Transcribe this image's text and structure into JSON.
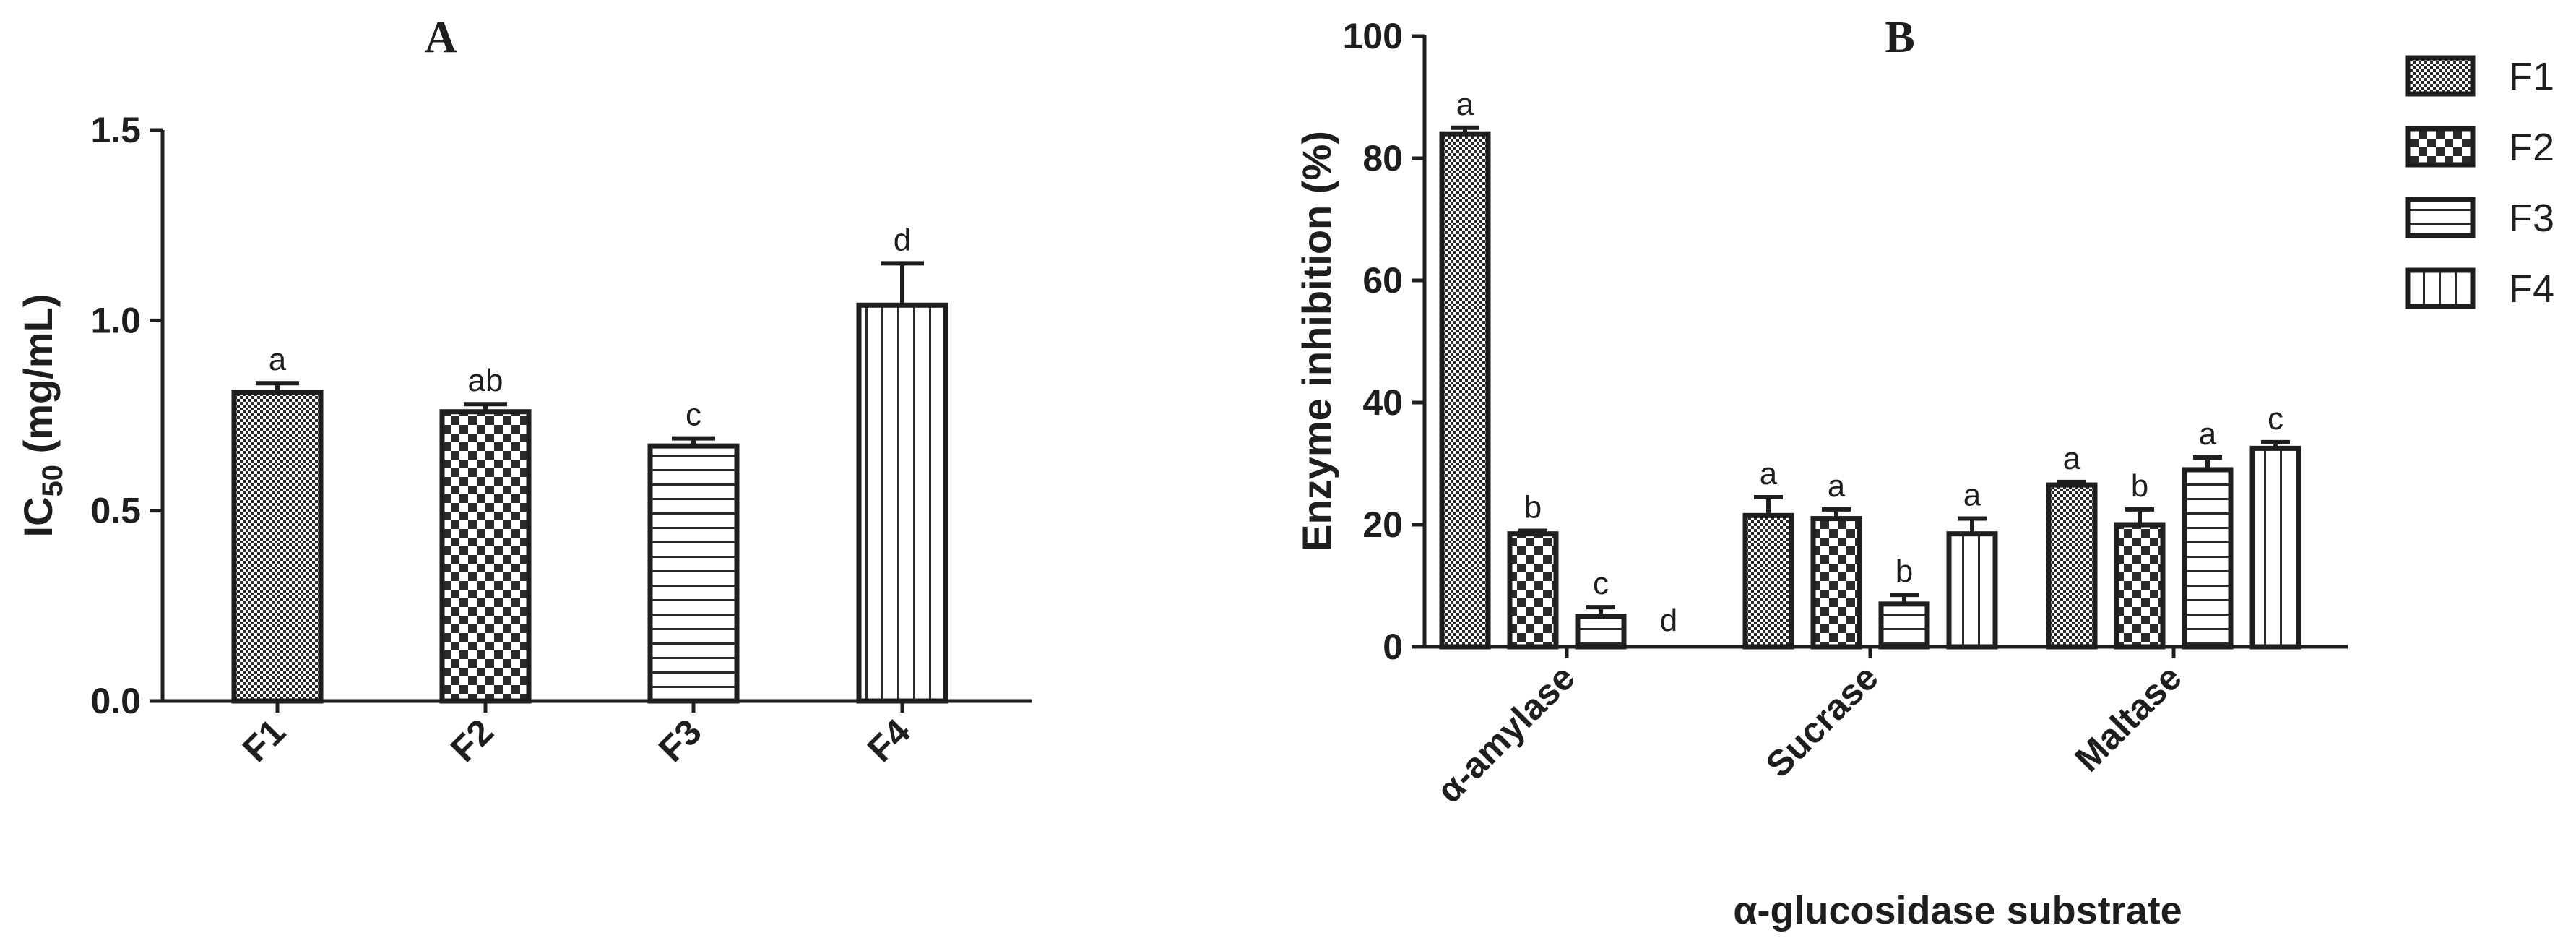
{
  "chart_data": [
    {
      "panel": "A",
      "type": "bar",
      "title": "A",
      "ylabel": "IC",
      "ylabel_sub": "50",
      "ylabel_suffix": " (mg/mL)",
      "xlabel": "",
      "ylim": [
        0,
        1.5
      ],
      "yticks": [
        "0.0",
        "0.5",
        "1.0",
        "1.5"
      ],
      "categories": [
        "F1",
        "F2",
        "F3",
        "F4"
      ],
      "values": [
        0.81,
        0.76,
        0.67,
        1.04
      ],
      "errors": [
        0.025,
        0.02,
        0.02,
        0.11
      ],
      "letters": [
        "a",
        "ab",
        "c",
        "d"
      ],
      "patterns": [
        "F1",
        "F2",
        "F3",
        "F4"
      ],
      "grid": false
    },
    {
      "panel": "B",
      "type": "bar",
      "title": "B",
      "ylabel": "Enzyme inhibition (%)",
      "xlabel": "α-glucosidase substrate",
      "ylim": [
        0,
        100
      ],
      "yticks": [
        "0",
        "20",
        "40",
        "60",
        "80",
        "100"
      ],
      "categories": [
        "α-amylase",
        "Sucrase",
        "Maltase"
      ],
      "series": [
        {
          "name": "F1",
          "values": [
            84,
            21.5,
            26.5
          ],
          "errors": [
            1,
            3,
            0.5
          ],
          "letters": [
            "a",
            "a",
            "a"
          ]
        },
        {
          "name": "F2",
          "values": [
            18.5,
            21,
            20
          ],
          "errors": [
            0.5,
            1.5,
            2.5
          ],
          "letters": [
            "b",
            "a",
            "b"
          ]
        },
        {
          "name": "F3",
          "values": [
            5,
            7,
            29
          ],
          "errors": [
            1.5,
            1.5,
            2
          ],
          "letters": [
            "c",
            "b",
            "a"
          ]
        },
        {
          "name": "F4",
          "values": [
            0,
            18.5,
            32.5
          ],
          "errors": [
            0,
            2.5,
            1
          ],
          "letters": [
            "d",
            "a",
            "c"
          ]
        }
      ],
      "legend_position": "top-right",
      "grid": false
    }
  ]
}
